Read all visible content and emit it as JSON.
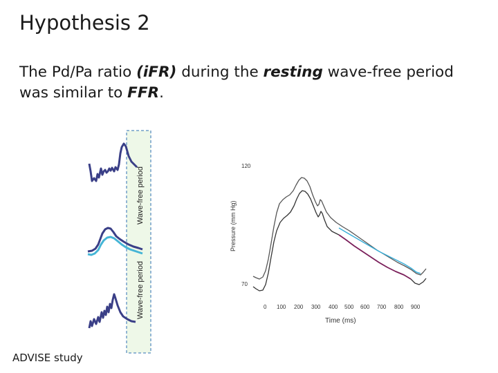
{
  "slide": {
    "title": "Hypothesis 2",
    "body": {
      "part1": "The Pd/Pa ratio ",
      "part2": "(iFR)",
      "part3": " during the ",
      "part4": "resting",
      "part5": " wave-free period was similar to ",
      "part6": "FFR",
      "part7": "."
    },
    "footer": "ADVISE study"
  },
  "left_figure": {
    "label_top": "Wave-free period",
    "label_bottom": "Wave-free period",
    "colors": {
      "trace": "#3a3f87",
      "highlight": "#45b5d6",
      "band": "#eef8e8"
    }
  },
  "right_chart": {
    "ylabel": "Pressure (mm Hg)",
    "xlabel": "Time (ms)",
    "y_ticks": [
      "120",
      "70"
    ],
    "x_ticks": [
      "0",
      "100",
      "200",
      "300",
      "400",
      "500",
      "600",
      "700",
      "800",
      "900"
    ],
    "colors": {
      "gray": "#555555",
      "cyan": "#3aaed8",
      "magenta": "#7a1f5a"
    }
  }
}
